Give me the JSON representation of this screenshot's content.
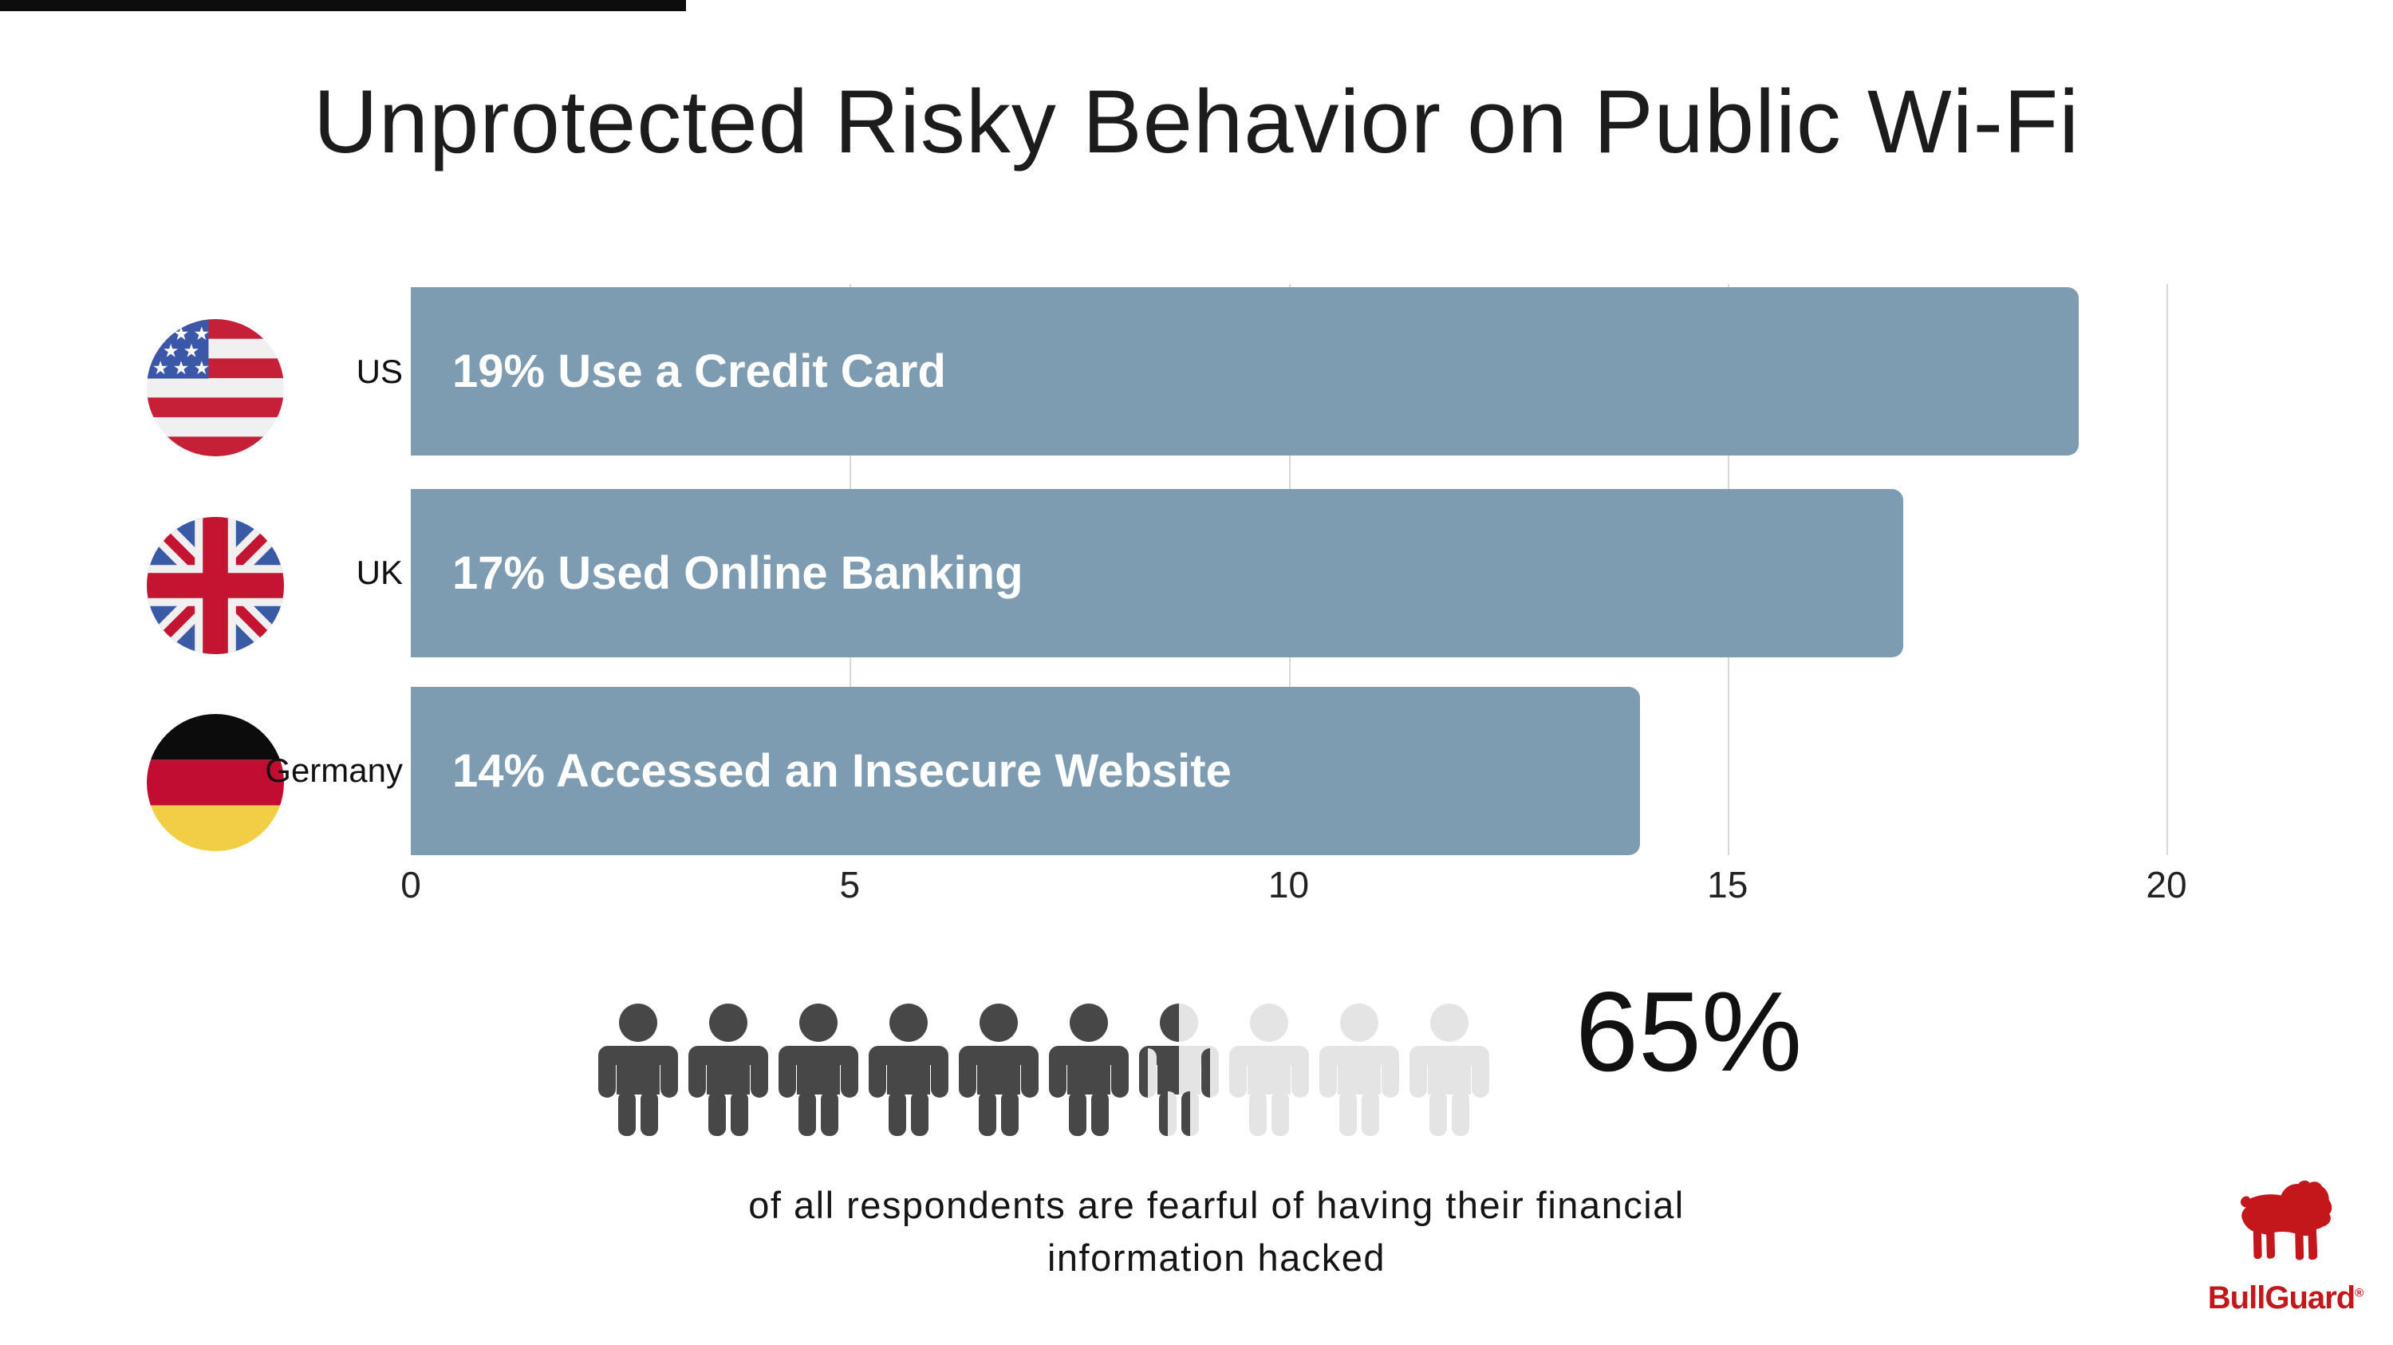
{
  "title": "Unprotected Risky Behavior on Public Wi-Fi",
  "chart_data": {
    "type": "bar",
    "orientation": "horizontal",
    "categories": [
      "US",
      "UK",
      "Germany"
    ],
    "values": [
      19,
      17,
      14
    ],
    "bar_labels": [
      "19% Use a Credit Card",
      "17% Used Online Banking",
      "14% Accessed an Insecure Website"
    ],
    "x_ticks": [
      0,
      5,
      10,
      15,
      20
    ],
    "xlim": [
      0,
      22
    ],
    "gridlines_at": [
      5,
      10,
      15,
      20
    ],
    "bar_color": "#7E9CB1",
    "gridline_color": "#d8d8d8",
    "legend": "none",
    "flags": [
      "us-flag",
      "uk-flag",
      "germany-flag"
    ]
  },
  "pictograph": {
    "type": "icon-array",
    "total_icons": 10,
    "filled_icons": 6.5,
    "percent_label": "65%",
    "caption_line1": "of all respondents are fearful of having their financial",
    "caption_line2": "information hacked",
    "dark_color": "#474747",
    "light_color": "#e4e4e4"
  },
  "branding": {
    "logo_text": "BullGuard",
    "registered_mark": "®",
    "logo_color": "#C3171B"
  },
  "flag_colors": {
    "us_red": "#C52038",
    "us_white": "#F0F0F0",
    "us_blue": "#3B57A8",
    "uk_blue": "#3B5AA6",
    "uk_red": "#C31432",
    "uk_white": "#F0F0F0",
    "de_black": "#0c0c0c",
    "de_red": "#C00D31",
    "de_gold": "#F2CE46"
  }
}
